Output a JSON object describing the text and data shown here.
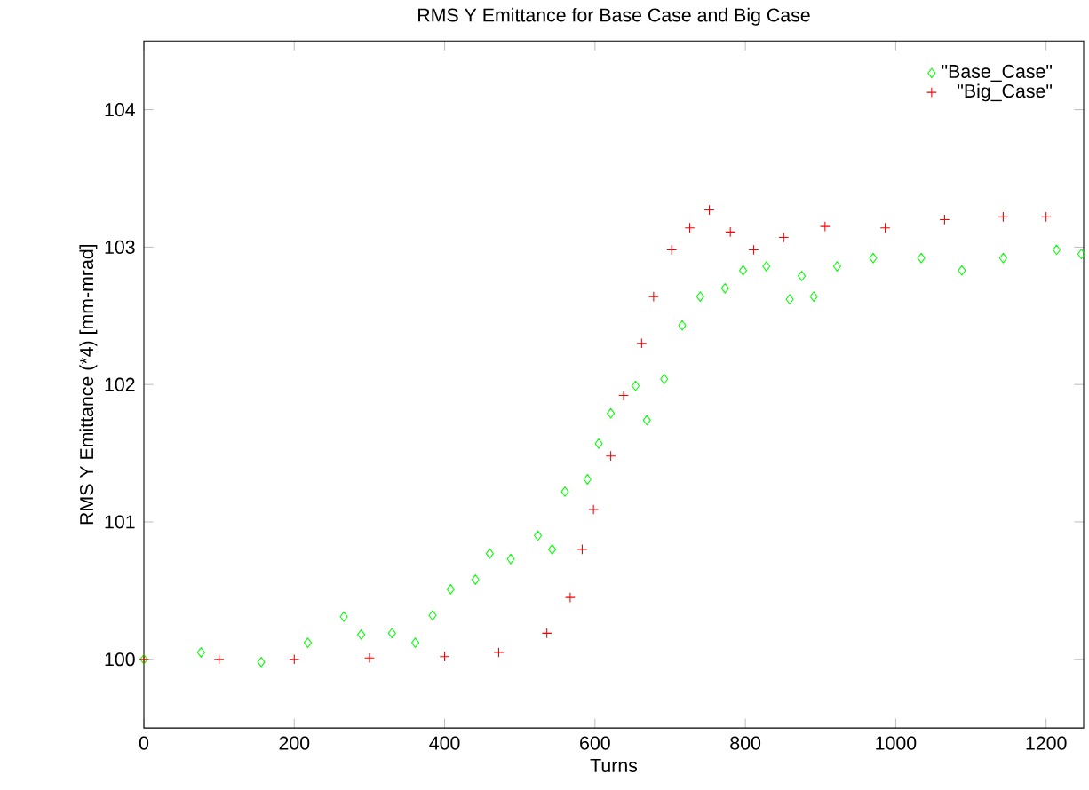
{
  "chart_data": {
    "type": "scatter",
    "title": "RMS Y Emittance for Base Case and Big Case",
    "xlabel": "Turns",
    "ylabel": "RMS Y Emittance (*4) [mm-mrad]",
    "xlim": [
      0,
      1250
    ],
    "ylim": [
      99.5,
      104.5
    ],
    "xticks": [
      0,
      200,
      400,
      600,
      800,
      1000,
      1200
    ],
    "yticks": [
      100,
      101,
      102,
      103,
      104
    ],
    "grid": false,
    "legend": "top right",
    "series": [
      {
        "name": "\"Base_Case\"",
        "color": "#00ff00",
        "marker": "diamond",
        "x": [
          0,
          76,
          156,
          218,
          266,
          289,
          330,
          361,
          384,
          408,
          441,
          460,
          488,
          524,
          543,
          560,
          590,
          605,
          621,
          654,
          669,
          692,
          716,
          740,
          773,
          797,
          828,
          859,
          875,
          891,
          922,
          970,
          1034,
          1088,
          1143,
          1214,
          1247
        ],
        "values": [
          100.0,
          100.05,
          99.98,
          100.12,
          100.31,
          100.18,
          100.19,
          100.12,
          100.32,
          100.51,
          100.58,
          100.77,
          100.73,
          100.9,
          100.8,
          101.22,
          101.31,
          101.57,
          101.79,
          101.99,
          101.74,
          102.04,
          102.43,
          102.64,
          102.7,
          102.83,
          102.86,
          102.62,
          102.79,
          102.64,
          102.86,
          102.92,
          102.92,
          102.83,
          102.92,
          102.98,
          102.95
        ]
      },
      {
        "name": "\"Big_Case\"",
        "color": "#ff0000",
        "marker": "cross",
        "x": [
          0,
          100,
          200,
          300,
          400,
          472,
          536,
          567,
          583,
          598,
          621,
          638,
          662,
          678,
          702,
          726,
          752,
          780,
          811,
          851,
          906,
          986,
          1065,
          1143,
          1200
        ],
        "values": [
          100.0,
          100.0,
          100.0,
          100.01,
          100.02,
          100.05,
          100.19,
          100.45,
          100.8,
          101.09,
          101.48,
          101.92,
          102.3,
          102.64,
          102.98,
          103.14,
          103.27,
          103.11,
          102.98,
          103.07,
          103.15,
          103.14,
          103.2,
          103.22,
          103.22
        ]
      }
    ]
  }
}
